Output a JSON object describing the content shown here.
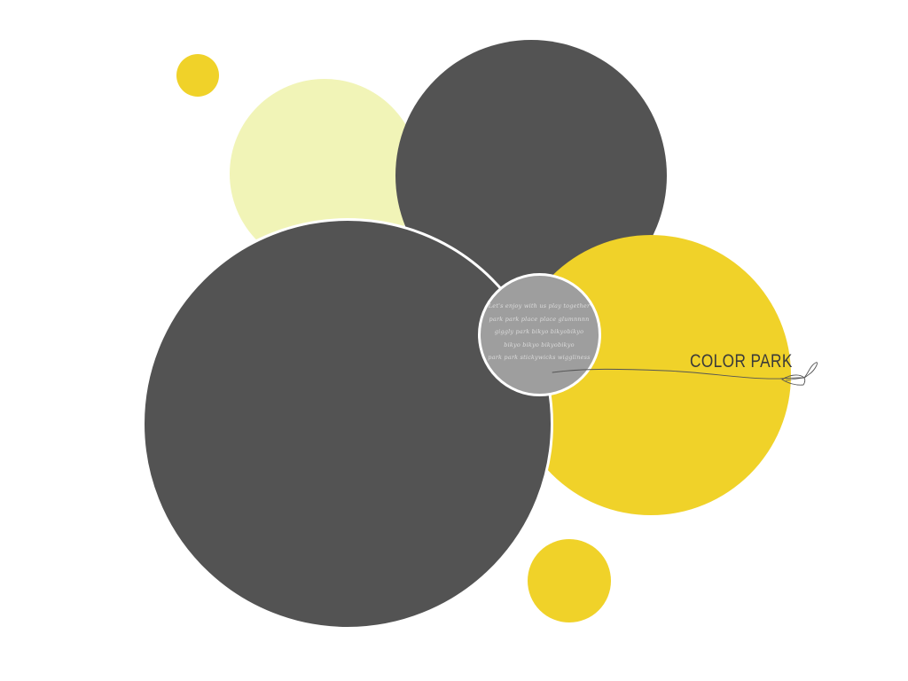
{
  "colors": {
    "background": "#ffffff",
    "dark": "#535353",
    "yellow": "#f0d229",
    "pale_yellow": "#f1f4b7",
    "gray": "#9e9e9e",
    "light_text": "#dcdcdc",
    "title_text": "#3a3a3a",
    "stroke": "#ffffff",
    "line": "#555555"
  },
  "brand": {
    "title": "COLOR  PARK"
  },
  "blurb": {
    "lines": [
      "Let's enjoy with us play together",
      "park park place place glumnnnn",
      "giggly park bikyo bikyobikyo",
      "bikyo bikyo bikyobikyo",
      "park park stickywicks wiggliness"
    ]
  },
  "decorations": {
    "circles": [
      "small-yellow-dot",
      "pale-yellow-circle",
      "dark-top-circle",
      "yellow-right-circle",
      "dark-big-circle",
      "gray-center-circle",
      "yellow-bottom-dot"
    ],
    "ornament": "leaf-swirl-line-icon"
  }
}
